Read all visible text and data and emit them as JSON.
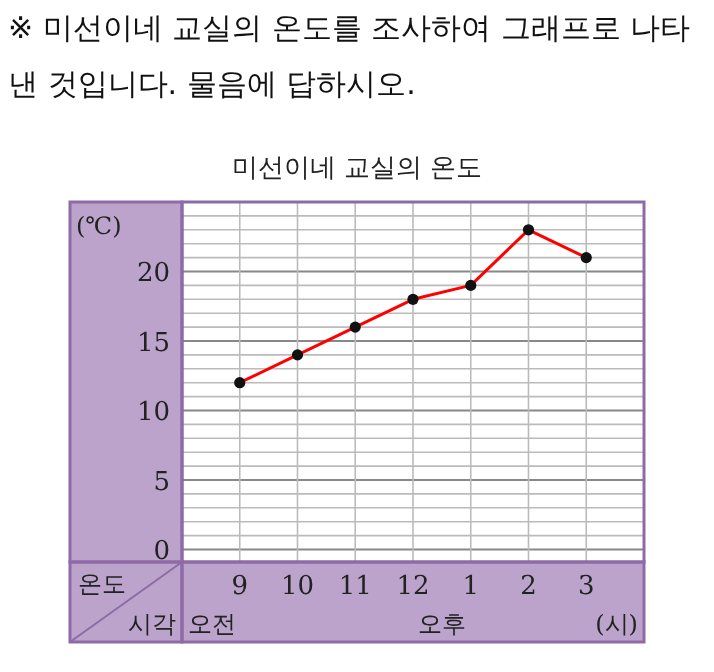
{
  "chart_data": {
    "type": "line",
    "title": "미선이네 교실의 온도",
    "annotations": [
      "※ 미선이네 교실의 온도를 조사하여 그래프로 나타낸 것입니다. 물음에 답하시오.",
      "온도",
      "시각",
      "오전",
      "오후"
    ],
    "ylabel": "(℃)",
    "xlabel": "(시)",
    "categories": [
      "9",
      "10",
      "11",
      "12",
      "1",
      "2",
      "3"
    ],
    "series": [
      {
        "color": "#ff0000",
        "values": [
          12,
          14,
          16,
          18,
          19,
          23,
          21
        ]
      }
    ],
    "marker": "circle",
    "grid": true,
    "ylim": [
      -0.9,
      25
    ],
    "yticks": [
      0,
      {
        "value": 1,
        "label": null
      },
      {
        "value": 2,
        "label": null
      },
      {
        "value": 3,
        "label": null
      },
      {
        "value": 4,
        "label": null
      },
      5,
      {
        "value": 6,
        "label": null
      },
      {
        "value": 7,
        "label": null
      },
      {
        "value": 8,
        "label": null
      },
      {
        "value": 9,
        "label": null
      },
      10,
      {
        "value": 11,
        "label": null
      },
      {
        "value": 12,
        "label": null
      },
      {
        "value": 13,
        "label": null
      },
      {
        "value": 14,
        "label": null
      },
      15,
      {
        "value": 16,
        "label": null
      },
      {
        "value": 17,
        "label": null
      },
      {
        "value": 18,
        "label": null
      },
      {
        "value": 19,
        "label": null
      },
      20,
      {
        "value": 21,
        "label": null
      },
      {
        "value": 22,
        "label": null
      },
      {
        "value": 23,
        "label": null
      },
      {
        "value": 24,
        "label": null
      }
    ]
  }
}
